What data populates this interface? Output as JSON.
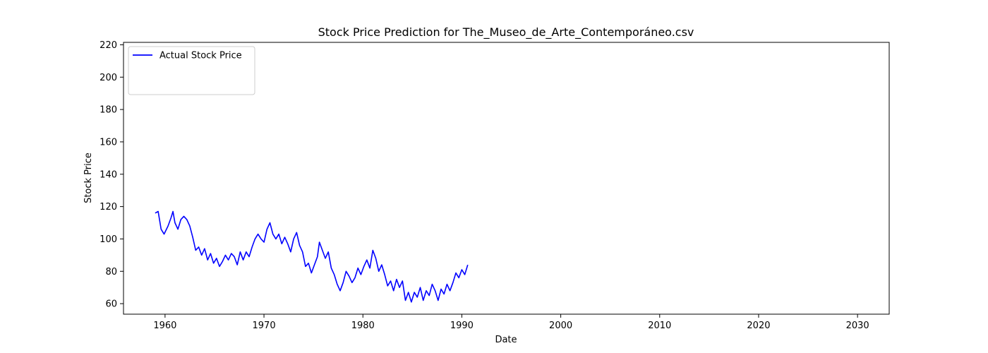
{
  "chart_data": {
    "type": "line",
    "title": "Stock Price Prediction for The_Museo_de_Arte_Contemporáneo.csv",
    "xlabel": "Date",
    "ylabel": "Stock Price",
    "xlim": [
      1955.8,
      2033.2
    ],
    "ylim": [
      53.5,
      221.5
    ],
    "x_ticks": [
      1960,
      1970,
      1980,
      1990,
      2000,
      2010,
      2020,
      2030
    ],
    "y_ticks": [
      60,
      80,
      100,
      120,
      140,
      160,
      180,
      200,
      220
    ],
    "grid": false,
    "legend": "top-left",
    "series": [
      {
        "name": "Actual Stock Price",
        "color": "#0000ff",
        "points": [
          [
            1959.0,
            116
          ],
          [
            1959.3,
            117
          ],
          [
            1959.6,
            106
          ],
          [
            1959.9,
            103
          ],
          [
            1960.3,
            108
          ],
          [
            1960.6,
            113
          ],
          [
            1960.8,
            117
          ],
          [
            1961.0,
            110
          ],
          [
            1961.3,
            106
          ],
          [
            1961.6,
            112
          ],
          [
            1961.9,
            114
          ],
          [
            1962.2,
            112
          ],
          [
            1962.5,
            108
          ],
          [
            1962.8,
            101
          ],
          [
            1963.1,
            93
          ],
          [
            1963.4,
            95
          ],
          [
            1963.7,
            90
          ],
          [
            1964.0,
            94
          ],
          [
            1964.3,
            87
          ],
          [
            1964.6,
            91
          ],
          [
            1964.9,
            85
          ],
          [
            1965.2,
            88
          ],
          [
            1965.5,
            83
          ],
          [
            1965.8,
            86
          ],
          [
            1966.1,
            90
          ],
          [
            1966.4,
            87
          ],
          [
            1966.7,
            91
          ],
          [
            1967.0,
            89
          ],
          [
            1967.3,
            84
          ],
          [
            1967.6,
            92
          ],
          [
            1967.9,
            87
          ],
          [
            1968.2,
            92
          ],
          [
            1968.5,
            89
          ],
          [
            1968.8,
            95
          ],
          [
            1969.1,
            100
          ],
          [
            1969.4,
            103
          ],
          [
            1969.7,
            100
          ],
          [
            1970.0,
            98
          ],
          [
            1970.3,
            106
          ],
          [
            1970.6,
            110
          ],
          [
            1970.9,
            103
          ],
          [
            1971.2,
            100
          ],
          [
            1971.5,
            103
          ],
          [
            1971.8,
            97
          ],
          [
            1972.1,
            101
          ],
          [
            1972.4,
            97
          ],
          [
            1972.7,
            92
          ],
          [
            1973.0,
            100
          ],
          [
            1973.3,
            104
          ],
          [
            1973.6,
            96
          ],
          [
            1973.9,
            92
          ],
          [
            1974.2,
            83
          ],
          [
            1974.5,
            85
          ],
          [
            1974.8,
            79
          ],
          [
            1975.1,
            84
          ],
          [
            1975.4,
            89
          ],
          [
            1975.6,
            98
          ],
          [
            1975.9,
            93
          ],
          [
            1976.2,
            88
          ],
          [
            1976.5,
            92
          ],
          [
            1976.8,
            82
          ],
          [
            1977.1,
            78
          ],
          [
            1977.4,
            72
          ],
          [
            1977.7,
            68
          ],
          [
            1978.0,
            73
          ],
          [
            1978.3,
            80
          ],
          [
            1978.6,
            77
          ],
          [
            1978.9,
            73
          ],
          [
            1979.2,
            76
          ],
          [
            1979.5,
            82
          ],
          [
            1979.8,
            78
          ],
          [
            1980.1,
            83
          ],
          [
            1980.4,
            87
          ],
          [
            1980.7,
            82
          ],
          [
            1981.0,
            93
          ],
          [
            1981.3,
            88
          ],
          [
            1981.6,
            80
          ],
          [
            1981.9,
            84
          ],
          [
            1982.2,
            78
          ],
          [
            1982.5,
            71
          ],
          [
            1982.8,
            74
          ],
          [
            1983.1,
            68
          ],
          [
            1983.4,
            75
          ],
          [
            1983.7,
            70
          ],
          [
            1984.0,
            74
          ],
          [
            1984.3,
            62
          ],
          [
            1984.6,
            67
          ],
          [
            1984.9,
            61
          ],
          [
            1985.2,
            67
          ],
          [
            1985.5,
            64
          ],
          [
            1985.8,
            70
          ],
          [
            1986.1,
            62
          ],
          [
            1986.4,
            68
          ],
          [
            1986.7,
            65
          ],
          [
            1987.0,
            72
          ],
          [
            1987.3,
            68
          ],
          [
            1987.6,
            62
          ],
          [
            1987.9,
            69
          ],
          [
            1988.2,
            66
          ],
          [
            1988.5,
            72
          ],
          [
            1988.8,
            68
          ],
          [
            1989.1,
            73
          ],
          [
            1989.4,
            79
          ],
          [
            1989.7,
            76
          ],
          [
            1990.0,
            81
          ],
          [
            1990.3,
            78
          ],
          [
            1990.6,
            84
          ]
        ]
      }
    ]
  }
}
